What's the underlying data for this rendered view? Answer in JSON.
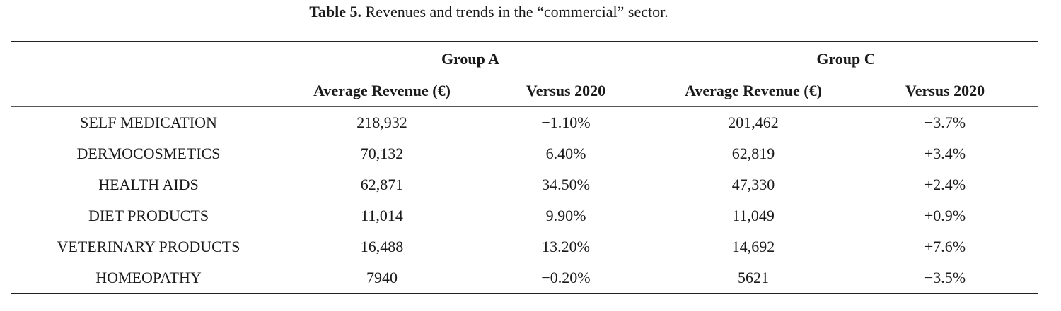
{
  "caption": {
    "label": "Table 5.",
    "text": "Revenues and trends in the “commercial” sector."
  },
  "table": {
    "groups": [
      {
        "name": "Group A"
      },
      {
        "name": "Group C"
      }
    ],
    "subheaders": [
      "Average Revenue (€)",
      "Versus 2020",
      "Average Revenue (€)",
      "Versus 2020"
    ],
    "rows": [
      {
        "label": "SELF MEDICATION",
        "a_revenue": "218,932",
        "a_versus": "−1.10%",
        "c_revenue": "201,462",
        "c_versus": "−3.7%"
      },
      {
        "label": "DERMOCOSMETICS",
        "a_revenue": "70,132",
        "a_versus": "6.40%",
        "c_revenue": "62,819",
        "c_versus": "+3.4%"
      },
      {
        "label": "HEALTH AIDS",
        "a_revenue": "62,871",
        "a_versus": "34.50%",
        "c_revenue": "47,330",
        "c_versus": "+2.4%"
      },
      {
        "label": "DIET PRODUCTS",
        "a_revenue": "11,014",
        "a_versus": "9.90%",
        "c_revenue": "11,049",
        "c_versus": "+0.9%"
      },
      {
        "label": "VETERINARY PRODUCTS",
        "a_revenue": "16,488",
        "a_versus": "13.20%",
        "c_revenue": "14,692",
        "c_versus": "+7.6%"
      },
      {
        "label": "HOMEOPATHY",
        "a_revenue": "7940",
        "a_versus": "−0.20%",
        "c_revenue": "5621",
        "c_versus": "−3.5%"
      }
    ]
  }
}
